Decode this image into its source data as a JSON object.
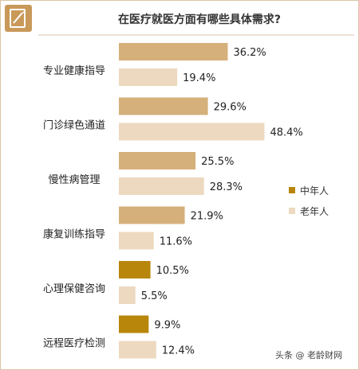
{
  "header": {
    "title": "在医疗就医方面有哪些具体需求?"
  },
  "colors": {
    "middle_aged_normal": "#d5b07b",
    "middle_aged_highlight": "#b8860b",
    "elderly": "#ecd9bf",
    "frame": "#d9c5a5",
    "icon": "#c9995a"
  },
  "chart_data": {
    "type": "bar",
    "orientation": "horizontal",
    "title": "在医疗就医方面有哪些具体需求?",
    "categories": [
      "专业健康指导",
      "门诊绿色通道",
      "慢性病管理",
      "康复训练指导",
      "心理保健咨询",
      "远程医疗检测"
    ],
    "series": [
      {
        "name": "中年人",
        "values": [
          36.2,
          29.6,
          25.5,
          21.9,
          10.5,
          9.9
        ]
      },
      {
        "name": "老年人",
        "values": [
          19.4,
          48.4,
          28.3,
          11.6,
          5.5,
          12.4
        ]
      }
    ],
    "value_labels": [
      [
        "36.2%",
        "29.6%",
        "25.5%",
        "21.9%",
        "10.5%",
        "9.9%"
      ],
      [
        "19.4%",
        "48.4%",
        "28.3%",
        "11.6%",
        "5.5%",
        "12.4%"
      ]
    ],
    "unit": "%",
    "grid": false,
    "legend_position": "right",
    "xlim": [
      0,
      50
    ]
  },
  "legend": {
    "items": [
      "中年人",
      "老年人"
    ]
  },
  "watermark": {
    "text": "头条 @ 老龄财网"
  },
  "icon": "survey-document-icon"
}
